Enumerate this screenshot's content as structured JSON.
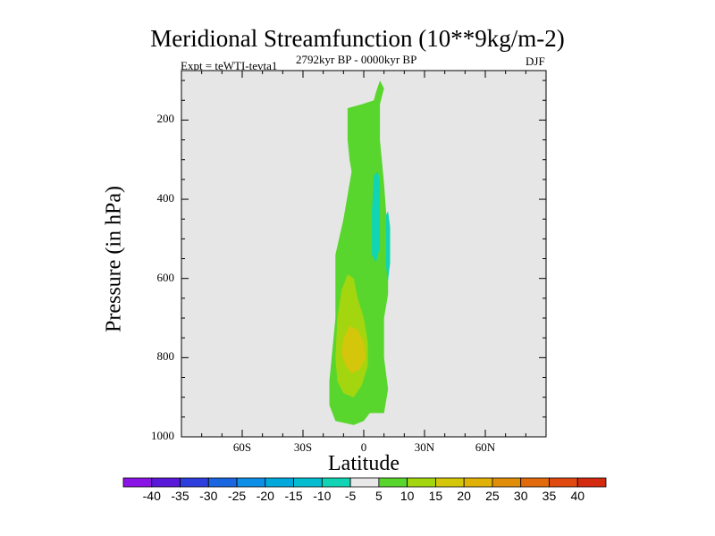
{
  "header": {
    "title": "Meridional Streamfunction (10**9kg/m-2)",
    "expt": "Expt = teWTI-tevta1",
    "period": "2792kyr BP - 0000kyr BP",
    "season": "DJF"
  },
  "colors": {
    "background": "#e6e6e6",
    "pos5": "#59d62d",
    "pos10": "#a3d60e",
    "pos15": "#d3c60b",
    "neg5": "#10d4b4"
  },
  "chart_data": {
    "type": "contour",
    "title": "Meridional Streamfunction (10**9kg/m-2)",
    "xlabel": "Latitude",
    "ylabel": "Pressure (in hPa)",
    "xlim": [
      -90,
      90
    ],
    "ylim": [
      1000,
      75
    ],
    "xticks": [
      {
        "value": -60,
        "label": "60S"
      },
      {
        "value": -30,
        "label": "30S"
      },
      {
        "value": 0,
        "label": "0"
      },
      {
        "value": 30,
        "label": "30N"
      },
      {
        "value": 60,
        "label": "60N"
      }
    ],
    "yticks": [
      {
        "value": 200,
        "label": "200"
      },
      {
        "value": 400,
        "label": "400"
      },
      {
        "value": 600,
        "label": "600"
      },
      {
        "value": 800,
        "label": "800"
      },
      {
        "value": 1000,
        "label": "1000"
      }
    ],
    "colorbar": {
      "levels": [
        -40,
        -35,
        -30,
        -25,
        -20,
        -15,
        -10,
        -5,
        5,
        10,
        15,
        20,
        25,
        30,
        35,
        40
      ],
      "labels": [
        "-40",
        "-35",
        "-30",
        "-25",
        "-20",
        "-15",
        "-10",
        "-5",
        "5",
        "10",
        "15",
        "20",
        "25",
        "30",
        "35",
        "40"
      ],
      "colors": [
        "#8a14e6",
        "#5a18d8",
        "#2e3edc",
        "#1a66e0",
        "#0c8ee6",
        "#00a8dc",
        "#04bcd0",
        "#10d4b4",
        "#e8e8e8",
        "#59d62d",
        "#a3d60e",
        "#d3c60b",
        "#e0b208",
        "#e08e0a",
        "#e06a0c",
        "#e04a10",
        "#d42a10"
      ]
    },
    "regions": [
      {
        "label": "5 to 10",
        "color_key": "pos5",
        "points": [
          [
            -8,
            1000
          ],
          [
            -8,
            170
          ],
          [
            -1,
            160
          ],
          [
            5,
            150
          ],
          [
            6,
            130
          ],
          [
            8,
            100
          ],
          [
            10,
            120
          ],
          [
            8,
            160
          ],
          [
            8,
            250
          ],
          [
            10,
            360
          ],
          [
            12,
            500
          ],
          [
            12,
            640
          ],
          [
            10,
            700
          ],
          [
            10,
            800
          ],
          [
            12,
            880
          ],
          [
            10,
            940
          ],
          [
            3,
            940
          ],
          [
            0,
            960
          ],
          [
            -5,
            970
          ],
          [
            -14,
            960
          ],
          [
            -17,
            920
          ],
          [
            -17,
            860
          ],
          [
            -14,
            700
          ],
          [
            -14,
            540
          ],
          [
            -10,
            450
          ],
          [
            -6,
            330
          ],
          [
            -7,
            300
          ],
          [
            -8,
            250
          ]
        ]
      },
      {
        "label": "10 to 15",
        "color_key": "pos10",
        "points": [
          [
            -10,
            890
          ],
          [
            -13,
            860
          ],
          [
            -14,
            800
          ],
          [
            -13,
            700
          ],
          [
            -11,
            630
          ],
          [
            -8,
            590
          ],
          [
            -5,
            600
          ],
          [
            -3,
            650
          ],
          [
            0,
            700
          ],
          [
            2,
            760
          ],
          [
            2,
            820
          ],
          [
            -1,
            870
          ],
          [
            -5,
            900
          ]
        ]
      },
      {
        "label": "15 to 20",
        "color_key": "pos15",
        "points": [
          [
            -9,
            820
          ],
          [
            -11,
            790
          ],
          [
            -10,
            750
          ],
          [
            -7,
            720
          ],
          [
            -3,
            730
          ],
          [
            0,
            760
          ],
          [
            1,
            800
          ],
          [
            -2,
            830
          ],
          [
            -6,
            840
          ]
        ]
      },
      {
        "label": "-10 to -5 (a)",
        "color_key": "neg5",
        "points": [
          [
            5,
            340
          ],
          [
            7,
            330
          ],
          [
            8,
            360
          ],
          [
            8,
            520
          ],
          [
            6,
            560
          ],
          [
            4,
            540
          ],
          [
            4,
            430
          ]
        ]
      },
      {
        "label": "-10 to -5 (b)",
        "color_key": "neg5",
        "points": [
          [
            11,
            440
          ],
          [
            12,
            430
          ],
          [
            13,
            470
          ],
          [
            13,
            560
          ],
          [
            12,
            605
          ],
          [
            11,
            570
          ],
          [
            11,
            490
          ]
        ]
      }
    ]
  }
}
